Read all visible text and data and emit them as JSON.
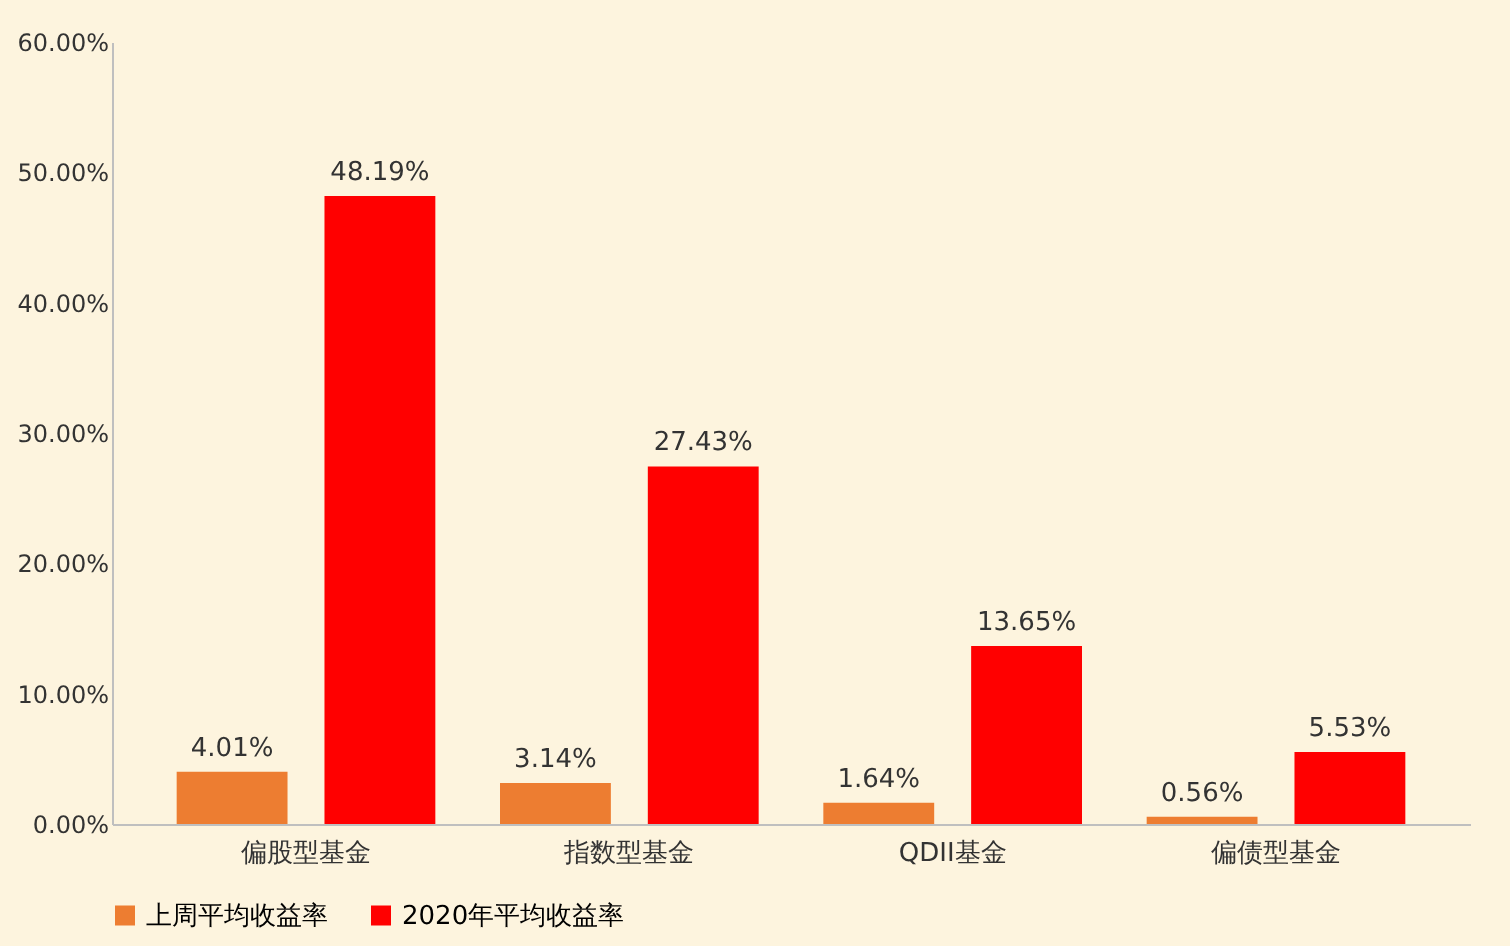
{
  "chart_data": {
    "type": "bar",
    "categories": [
      "偏股型基金",
      "指数型基金",
      "QDII基金",
      "偏债型基金"
    ],
    "series": [
      {
        "name": "上周平均收益率",
        "color": "#ed7d31",
        "values": [
          4.01,
          3.14,
          1.64,
          0.56
        ],
        "value_labels": [
          "4.01%",
          "3.14%",
          "1.64%",
          "0.56%"
        ]
      },
      {
        "name": "2020年平均收益率",
        "color": "#ff0000",
        "values": [
          48.19,
          27.43,
          13.65,
          5.53
        ],
        "value_labels": [
          "48.19%",
          "27.43%",
          "13.65%",
          "5.53%"
        ]
      }
    ],
    "ylim": [
      0,
      60
    ],
    "yticks": [
      {
        "value": 0,
        "label": "0.00%"
      },
      {
        "value": 10,
        "label": "10.00%"
      },
      {
        "value": 20,
        "label": "20.00%"
      },
      {
        "value": 30,
        "label": "30.00%"
      },
      {
        "value": 40,
        "label": "40.00%"
      },
      {
        "value": 50,
        "label": "50.00%"
      },
      {
        "value": 60,
        "label": "60.00%"
      }
    ],
    "grid": false,
    "legend": "bottom"
  }
}
